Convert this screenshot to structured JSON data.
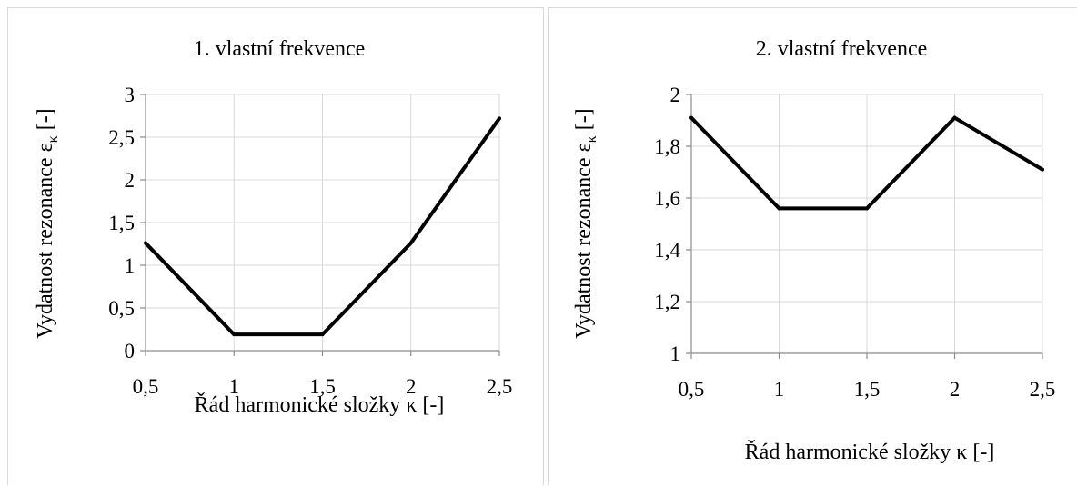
{
  "chart_data": [
    {
      "type": "line",
      "title": "1. vlastní frekvence",
      "xlabel": "Řád harmonické složky κ [-]",
      "ylabel": "Vydatnost rezonance ε",
      "ylabel_sub": "κ",
      "ylabel_suffix": " [-]",
      "x": [
        0.5,
        1,
        1.5,
        2,
        2.5
      ],
      "x_tick_labels": [
        "0,5",
        "1",
        "1,5",
        "2",
        "2,5"
      ],
      "y_ticks": [
        0,
        0.5,
        1,
        1.5,
        2,
        2.5,
        3
      ],
      "y_tick_labels": [
        "0",
        "0,5",
        "1",
        "1,5",
        "2",
        "2,5",
        "3"
      ],
      "xlim": [
        0.5,
        2.5
      ],
      "ylim": [
        0,
        3
      ],
      "grid": true,
      "legend": "none",
      "series": [
        {
          "values": [
            1.26,
            0.19,
            0.19,
            1.26,
            2.72
          ],
          "color": "#000000"
        }
      ]
    },
    {
      "type": "line",
      "title": "2. vlastní frekvence",
      "xlabel": "Řád harmonické složky κ [-]",
      "ylabel": "Vydatnost rezonance ε",
      "ylabel_sub": "κ",
      "ylabel_suffix": " [-]",
      "x": [
        0.5,
        1,
        1.5,
        2,
        2.5
      ],
      "x_tick_labels": [
        "0,5",
        "1",
        "1,5",
        "2",
        "2,5"
      ],
      "y_ticks": [
        1,
        1.2,
        1.4,
        1.6,
        1.8,
        2
      ],
      "y_tick_labels": [
        "1",
        "1,2",
        "1,4",
        "1,6",
        "1,8",
        "2"
      ],
      "xlim": [
        0.5,
        2.5
      ],
      "ylim": [
        1,
        2
      ],
      "grid": true,
      "legend": "none",
      "series": [
        {
          "values": [
            1.91,
            1.56,
            1.56,
            1.91,
            1.71
          ],
          "color": "#000000"
        }
      ]
    }
  ]
}
